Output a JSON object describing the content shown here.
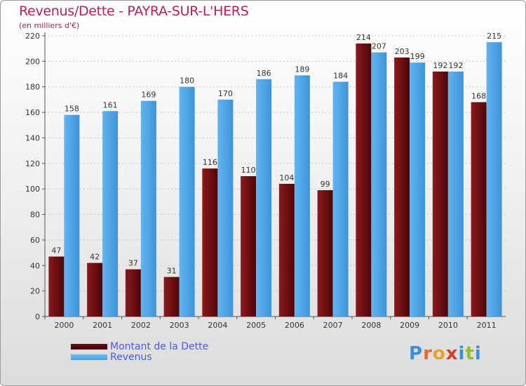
{
  "title": "Revenus/Dette - PAYRA-SUR-L'HERS",
  "subtitle": "(en milliers d'€)",
  "colors": {
    "dette": "#6b0d10",
    "revenus": "#4aa3e4",
    "title": "#b5215a"
  },
  "legend": [
    {
      "label": "Montant de la Dette",
      "color": "#6b0d10"
    },
    {
      "label": "Revenus",
      "color": "#4aa3e4"
    }
  ],
  "logo": {
    "letters": [
      "P",
      "r",
      "o",
      "x",
      "i",
      "t",
      "i"
    ],
    "colors": [
      "#3a8fd6",
      "#e8692a",
      "#e8a12a",
      "#d6402a",
      "#3a8fd6",
      "#8fc02a",
      "#3a8fd6"
    ]
  },
  "chart_data": {
    "type": "bar",
    "categories": [
      "2000",
      "2001",
      "2002",
      "2003",
      "2004",
      "2005",
      "2006",
      "2007",
      "2008",
      "2009",
      "2010",
      "2011"
    ],
    "series": [
      {
        "name": "Montant de la Dette",
        "values": [
          47,
          42,
          37,
          31,
          116,
          110,
          104,
          99,
          214,
          203,
          192,
          168
        ]
      },
      {
        "name": "Revenus",
        "values": [
          158,
          161,
          169,
          180,
          170,
          186,
          189,
          184,
          207,
          199,
          192,
          215
        ]
      }
    ],
    "ylim": [
      0,
      220
    ],
    "yticks": [
      0,
      20,
      40,
      60,
      80,
      100,
      120,
      140,
      160,
      180,
      200,
      220
    ],
    "grid": true,
    "legend_position": "bottom-left"
  }
}
